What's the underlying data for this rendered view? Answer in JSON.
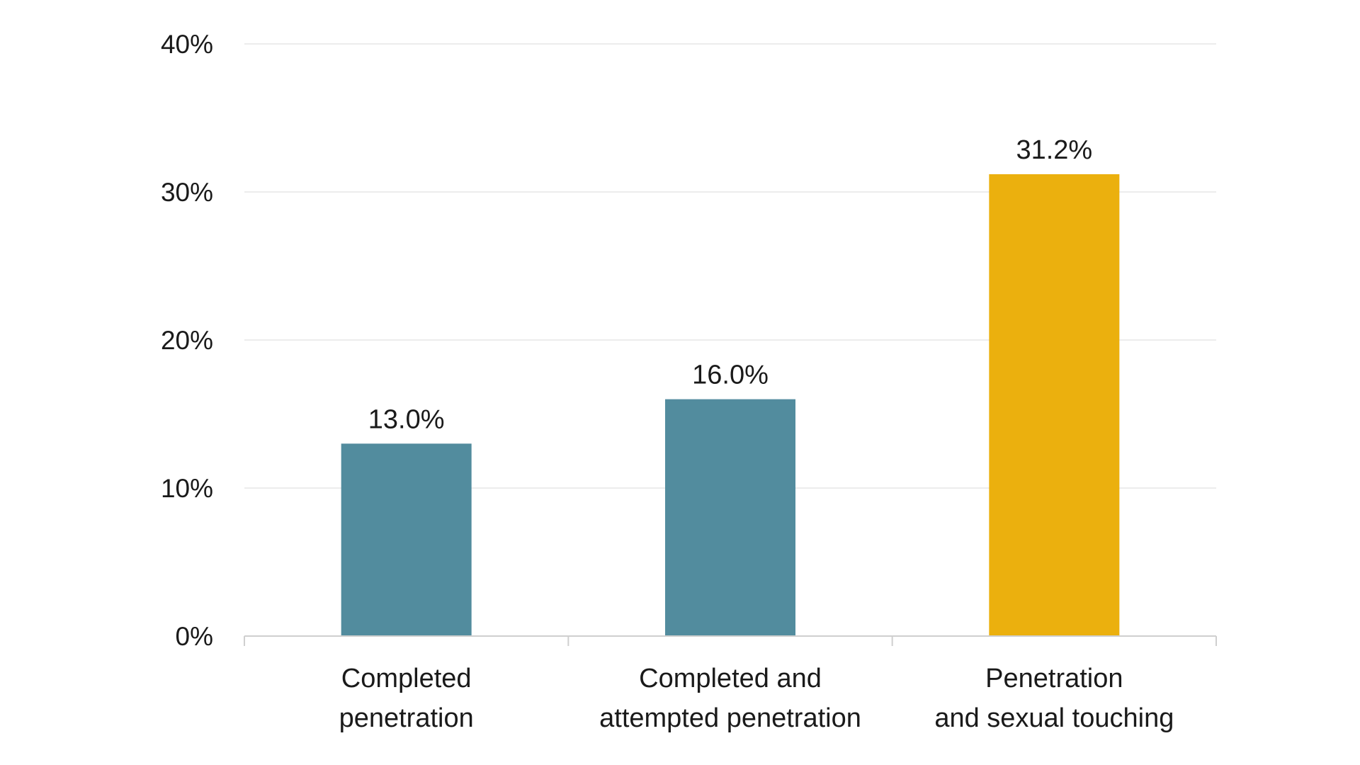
{
  "chart_data": {
    "type": "bar",
    "title": "",
    "xlabel": "",
    "ylabel": "",
    "categories": [
      [
        "Completed",
        "penetration"
      ],
      [
        "Completed and",
        "attempted penetration"
      ],
      [
        "Penetration",
        "and sexual touching"
      ]
    ],
    "values": [
      13.0,
      16.0,
      31.2
    ],
    "data_labels": [
      "13.0%",
      "16.0%",
      "31.2%"
    ],
    "bar_colors": [
      "#528c9e",
      "#528c9e",
      "#ebb00e"
    ],
    "ylim": [
      0,
      40
    ],
    "yticks": [
      0,
      10,
      20,
      30,
      40
    ],
    "ytick_labels": [
      "0%",
      "10%",
      "20%",
      "30%",
      "40%"
    ],
    "grid": true,
    "legend": "none"
  }
}
